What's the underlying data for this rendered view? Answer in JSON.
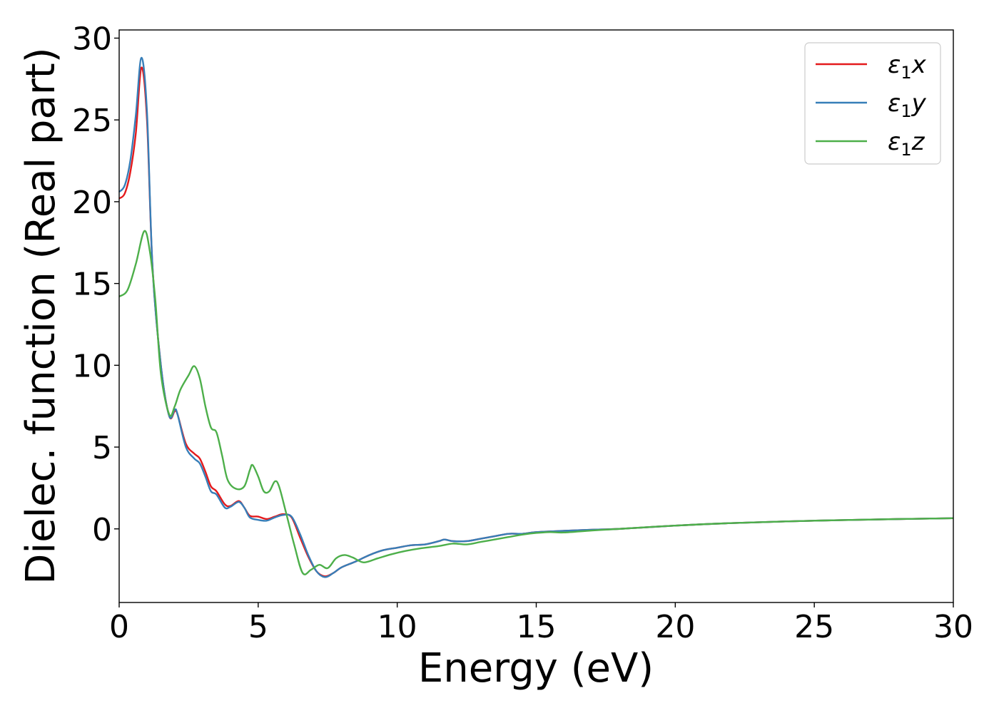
{
  "chart_data": {
    "type": "line",
    "xlabel": "Energy (eV)",
    "ylabel": "Dielec. function (Real part)",
    "xlim": [
      0,
      30
    ],
    "ylim": [
      -4.5,
      30.5
    ],
    "xticks": [
      0,
      5,
      10,
      15,
      20,
      25,
      30
    ],
    "yticks": [
      0,
      5,
      10,
      15,
      20,
      25,
      30
    ],
    "xtick_labels": [
      "0",
      "5",
      "10",
      "15",
      "20",
      "25",
      "30"
    ],
    "ytick_labels": [
      "0",
      "5",
      "10",
      "15",
      "20",
      "25",
      "30"
    ],
    "grid": false,
    "legend_position": "top-right",
    "series": [
      {
        "name": "ε₁x",
        "legend_main": "ε",
        "legend_sub": "1",
        "legend_var": "x",
        "color": "#e41a1c",
        "points": [
          [
            0,
            20.2
          ],
          [
            0.2,
            20.5
          ],
          [
            0.4,
            21.8
          ],
          [
            0.6,
            24.2
          ],
          [
            0.8,
            28.2
          ],
          [
            1.0,
            25.0
          ],
          [
            1.2,
            16.0
          ],
          [
            1.5,
            10.0
          ],
          [
            1.8,
            6.9
          ],
          [
            2.0,
            7.2
          ],
          [
            2.1,
            7.0
          ],
          [
            2.4,
            5.2
          ],
          [
            2.7,
            4.6
          ],
          [
            2.9,
            4.3
          ],
          [
            3.1,
            3.5
          ],
          [
            3.3,
            2.6
          ],
          [
            3.5,
            2.3
          ],
          [
            3.8,
            1.5
          ],
          [
            4.0,
            1.4
          ],
          [
            4.3,
            1.7
          ],
          [
            4.5,
            1.3
          ],
          [
            4.7,
            0.8
          ],
          [
            5.0,
            0.75
          ],
          [
            5.3,
            0.6
          ],
          [
            5.6,
            0.75
          ],
          [
            5.9,
            0.9
          ],
          [
            6.2,
            0.7
          ],
          [
            6.5,
            -0.5
          ],
          [
            6.8,
            -1.7
          ],
          [
            7.1,
            -2.6
          ],
          [
            7.4,
            -2.9
          ],
          [
            7.7,
            -2.7
          ],
          [
            8.0,
            -2.35
          ],
          [
            8.5,
            -2.0
          ],
          [
            9.0,
            -1.6
          ],
          [
            9.5,
            -1.3
          ],
          [
            10.0,
            -1.15
          ],
          [
            10.5,
            -1.0
          ],
          [
            11.0,
            -0.95
          ],
          [
            11.5,
            -0.75
          ],
          [
            11.7,
            -0.65
          ],
          [
            12.0,
            -0.75
          ],
          [
            12.5,
            -0.75
          ],
          [
            13.0,
            -0.6
          ],
          [
            13.5,
            -0.45
          ],
          [
            14.0,
            -0.3
          ],
          [
            14.5,
            -0.3
          ],
          [
            15.0,
            -0.2
          ],
          [
            16.0,
            -0.12
          ],
          [
            17.0,
            -0.05
          ],
          [
            18.0,
            0.0
          ],
          [
            20.0,
            0.2
          ],
          [
            22.0,
            0.35
          ],
          [
            25.0,
            0.5
          ],
          [
            28.0,
            0.6
          ],
          [
            30.0,
            0.65
          ]
        ]
      },
      {
        "name": "ε₁y",
        "legend_main": "ε",
        "legend_sub": "1",
        "legend_var": "y",
        "color": "#377eb8",
        "points": [
          [
            0,
            20.6
          ],
          [
            0.2,
            21.0
          ],
          [
            0.4,
            22.5
          ],
          [
            0.6,
            25.3
          ],
          [
            0.8,
            28.8
          ],
          [
            1.0,
            25.5
          ],
          [
            1.2,
            16.0
          ],
          [
            1.5,
            10.0
          ],
          [
            1.8,
            6.9
          ],
          [
            2.0,
            7.3
          ],
          [
            2.1,
            7.0
          ],
          [
            2.4,
            5.0
          ],
          [
            2.7,
            4.3
          ],
          [
            2.9,
            4.0
          ],
          [
            3.1,
            3.2
          ],
          [
            3.3,
            2.3
          ],
          [
            3.5,
            2.1
          ],
          [
            3.8,
            1.3
          ],
          [
            4.0,
            1.35
          ],
          [
            4.3,
            1.65
          ],
          [
            4.5,
            1.3
          ],
          [
            4.7,
            0.7
          ],
          [
            5.0,
            0.55
          ],
          [
            5.3,
            0.5
          ],
          [
            5.6,
            0.7
          ],
          [
            5.9,
            0.85
          ],
          [
            6.2,
            0.75
          ],
          [
            6.5,
            -0.3
          ],
          [
            6.8,
            -1.6
          ],
          [
            7.1,
            -2.6
          ],
          [
            7.4,
            -2.95
          ],
          [
            7.7,
            -2.7
          ],
          [
            8.0,
            -2.35
          ],
          [
            8.5,
            -2.0
          ],
          [
            9.0,
            -1.6
          ],
          [
            9.5,
            -1.3
          ],
          [
            10.0,
            -1.15
          ],
          [
            10.5,
            -1.0
          ],
          [
            11.0,
            -0.95
          ],
          [
            11.5,
            -0.75
          ],
          [
            11.7,
            -0.65
          ],
          [
            12.0,
            -0.75
          ],
          [
            12.5,
            -0.75
          ],
          [
            13.0,
            -0.6
          ],
          [
            13.5,
            -0.45
          ],
          [
            14.0,
            -0.3
          ],
          [
            14.5,
            -0.3
          ],
          [
            15.0,
            -0.2
          ],
          [
            16.0,
            -0.12
          ],
          [
            17.0,
            -0.05
          ],
          [
            18.0,
            0.0
          ],
          [
            20.0,
            0.2
          ],
          [
            22.0,
            0.35
          ],
          [
            25.0,
            0.5
          ],
          [
            28.0,
            0.6
          ],
          [
            30.0,
            0.65
          ]
        ]
      },
      {
        "name": "ε₁z",
        "legend_main": "ε",
        "legend_sub": "1",
        "legend_var": "z",
        "color": "#4daf4a",
        "points": [
          [
            0,
            14.2
          ],
          [
            0.3,
            14.6
          ],
          [
            0.6,
            16.2
          ],
          [
            0.9,
            18.2
          ],
          [
            1.1,
            17.0
          ],
          [
            1.3,
            14.0
          ],
          [
            1.5,
            9.5
          ],
          [
            1.8,
            7.0
          ],
          [
            2.0,
            7.5
          ],
          [
            2.2,
            8.5
          ],
          [
            2.5,
            9.4
          ],
          [
            2.7,
            9.95
          ],
          [
            2.9,
            9.2
          ],
          [
            3.1,
            7.5
          ],
          [
            3.3,
            6.2
          ],
          [
            3.5,
            5.9
          ],
          [
            3.7,
            4.5
          ],
          [
            3.9,
            3.0
          ],
          [
            4.2,
            2.45
          ],
          [
            4.5,
            2.6
          ],
          [
            4.7,
            3.6
          ],
          [
            4.8,
            3.9
          ],
          [
            5.0,
            3.2
          ],
          [
            5.2,
            2.3
          ],
          [
            5.4,
            2.3
          ],
          [
            5.6,
            2.9
          ],
          [
            5.75,
            2.6
          ],
          [
            6.0,
            1.0
          ],
          [
            6.3,
            -1.0
          ],
          [
            6.6,
            -2.7
          ],
          [
            6.9,
            -2.5
          ],
          [
            7.2,
            -2.2
          ],
          [
            7.5,
            -2.4
          ],
          [
            7.8,
            -1.8
          ],
          [
            8.1,
            -1.6
          ],
          [
            8.4,
            -1.75
          ],
          [
            8.8,
            -2.05
          ],
          [
            9.3,
            -1.8
          ],
          [
            9.8,
            -1.55
          ],
          [
            10.3,
            -1.35
          ],
          [
            10.8,
            -1.2
          ],
          [
            11.5,
            -1.05
          ],
          [
            12.0,
            -0.9
          ],
          [
            12.5,
            -0.95
          ],
          [
            13.0,
            -0.8
          ],
          [
            13.5,
            -0.65
          ],
          [
            14.0,
            -0.5
          ],
          [
            14.5,
            -0.35
          ],
          [
            15.0,
            -0.25
          ],
          [
            15.5,
            -0.2
          ],
          [
            16.0,
            -0.22
          ],
          [
            17.0,
            -0.1
          ],
          [
            18.0,
            0.0
          ],
          [
            20.0,
            0.2
          ],
          [
            22.0,
            0.35
          ],
          [
            25.0,
            0.5
          ],
          [
            28.0,
            0.6
          ],
          [
            30.0,
            0.65
          ]
        ]
      }
    ]
  }
}
